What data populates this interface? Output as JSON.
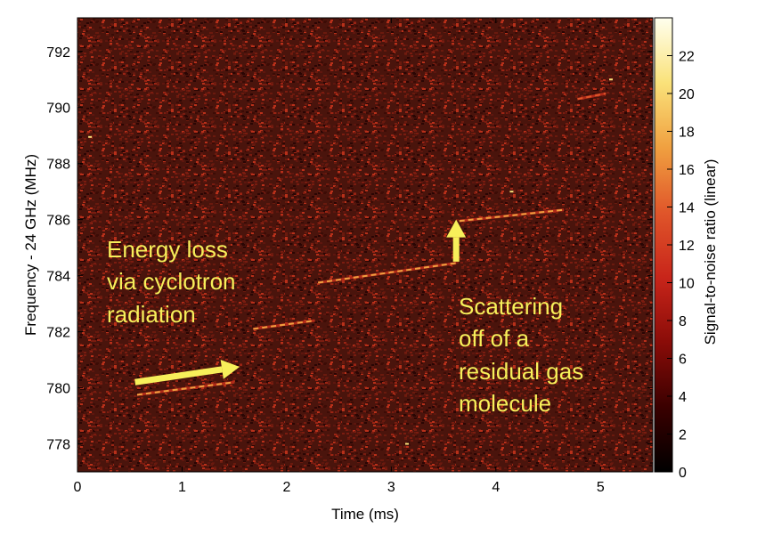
{
  "chart_data": {
    "type": "heatmap",
    "title": "",
    "xlabel": "Time (ms)",
    "ylabel": "Frequency - 24 GHz (MHz)",
    "xlim": [
      0,
      5.5
    ],
    "ylim": [
      777,
      793.2
    ],
    "x_ticks": [
      "0",
      "1",
      "2",
      "3",
      "4",
      "5"
    ],
    "y_ticks": [
      "778",
      "780",
      "782",
      "784",
      "786",
      "788",
      "790",
      "792"
    ],
    "colorbar": {
      "label": "Signal-to-noise ratio (linear)",
      "range": [
        0,
        24
      ],
      "ticks": [
        "0",
        "2",
        "4",
        "6",
        "8",
        "10",
        "12",
        "14",
        "16",
        "18",
        "20",
        "22"
      ],
      "colormap": [
        "#000000",
        "#3a0000",
        "#8a0c08",
        "#c8251a",
        "#e0562a",
        "#f0a040",
        "#fae27a",
        "#ffffee"
      ]
    },
    "background_noise_color": "#4a140c",
    "tracks": [
      {
        "segment": "1",
        "x": [
          0.57,
          1.5
        ],
        "y": [
          779.75,
          780.2
        ],
        "snr": 16
      },
      {
        "segment": "2",
        "x": [
          1.68,
          2.27
        ],
        "y": [
          782.1,
          782.4
        ],
        "snr": 17
      },
      {
        "segment": "3",
        "x": [
          2.3,
          3.62
        ],
        "y": [
          783.75,
          784.45
        ],
        "snr": 18
      },
      {
        "segment": "4",
        "x": [
          3.65,
          4.65
        ],
        "y": [
          785.95,
          786.35
        ],
        "snr": 18
      },
      {
        "segment": "5",
        "x": [
          4.78,
          5.05
        ],
        "y": [
          790.3,
          790.5
        ],
        "snr": 15
      }
    ],
    "isolated_points": [
      {
        "x": 0.12,
        "y": 788.95
      },
      {
        "x": 5.1,
        "y": 791.0
      },
      {
        "x": 4.15,
        "y": 787.0
      },
      {
        "x": 3.15,
        "y": 778.0
      }
    ],
    "annotations": [
      {
        "lines": [
          "Energy loss",
          "via cyclotron",
          "radiation"
        ],
        "arrow": {
          "from": [
            0.55,
            780.2
          ],
          "to": [
            1.55,
            780.75
          ]
        }
      },
      {
        "lines": [
          "Scattering",
          "off of a",
          "residual gas",
          "molecule"
        ],
        "arrow": {
          "from": [
            3.62,
            784.5
          ],
          "to": [
            3.62,
            786.0
          ]
        }
      }
    ],
    "annotation_color": "#f7ef5a",
    "grid": false
  }
}
